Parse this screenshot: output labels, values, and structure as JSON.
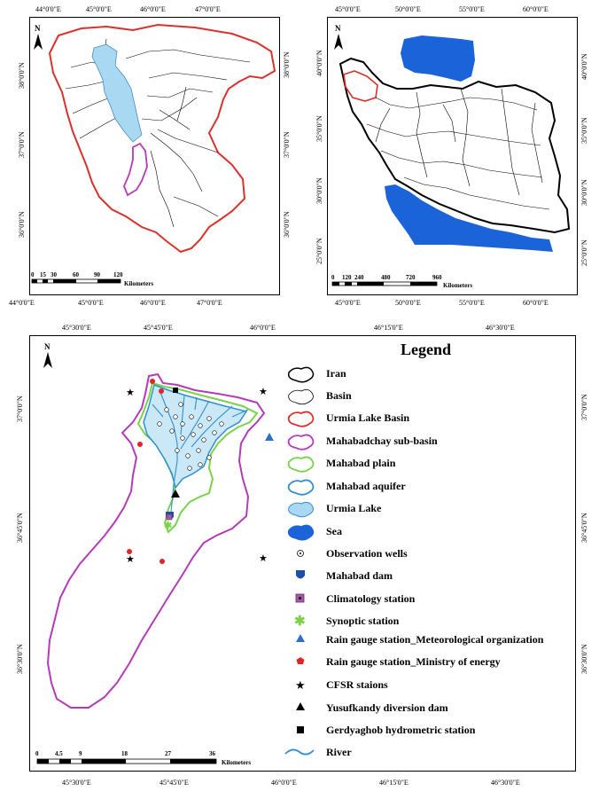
{
  "map1": {
    "top_labels": [
      "44°0'0\"E",
      "45°0'0\"E",
      "46°0'0\"E",
      "47°0'0\"E"
    ],
    "bottom_labels": [
      "44°0'0\"E",
      "45°0'0\"E",
      "46°0'0\"E",
      "47°0'0\"E"
    ],
    "left_labels": [
      "38°0'0\"N",
      "37°0'0\"N",
      "36°0'0\"N"
    ],
    "right_labels": [
      "38°0'0\"N",
      "37°0'0\"N",
      "36°0'0\"N"
    ],
    "scale_numbers": [
      "0",
      "15",
      "30",
      "60",
      "90",
      "120"
    ],
    "scale_unit": "Kilometers",
    "north": "N"
  },
  "map2": {
    "top_labels": [
      "45°0'0\"E",
      "50°0'0\"E",
      "55°0'0\"E",
      "60°0'0\"E"
    ],
    "bottom_labels": [
      "45°0'0\"E",
      "50°0'0\"E",
      "55°0'0\"E",
      "60°0'0\"E"
    ],
    "right_labels": [
      "40°0'0\"N",
      "35°0'0\"N",
      "30°0'0\"N",
      "25°0'0\"N"
    ],
    "left_labels": [
      "40°0'0\"N",
      "35°0'0\"N",
      "30°0'0\"N",
      "25°0'0\"N"
    ],
    "scale_numbers": [
      "0",
      "120",
      "240",
      "480",
      "720",
      "960"
    ],
    "scale_unit": "Kilometers",
    "north": "N"
  },
  "map3": {
    "top_labels": [
      "45°30'0\"E",
      "45°45'0\"E",
      "46°0'0\"E",
      "46°15'0\"E",
      "46°30'0\"E"
    ],
    "bottom_labels": [
      "45°30'0\"E",
      "45°45'0\"E",
      "46°0'0\"E",
      "46°15'0\"E",
      "46°30'0\"E"
    ],
    "left_labels": [
      "37°0'0\"N",
      "36°45'0\"N",
      "36°30'0\"N"
    ],
    "right_labels": [
      "37°0'0\"N",
      "36°45'0\"N",
      "36°30'0\"N"
    ],
    "scale_numbers": [
      "0",
      "4.5",
      "9",
      "18",
      "27",
      "36"
    ],
    "scale_unit": "Kilometers",
    "north": "N"
  },
  "legend": {
    "title": "Legend",
    "items": [
      {
        "key": "iran",
        "label": "Iran"
      },
      {
        "key": "basin",
        "label": "Basin"
      },
      {
        "key": "urmia-basin",
        "label": "Urmia Lake Basin"
      },
      {
        "key": "mahabadchay",
        "label": "Mahabadchay sub-basin"
      },
      {
        "key": "mahabad-plain",
        "label": "Mahabad plain"
      },
      {
        "key": "mahabad-aquifer",
        "label": "Mahabad aquifer"
      },
      {
        "key": "urmia-lake",
        "label": " Urmia Lake"
      },
      {
        "key": "sea",
        "label": "Sea"
      },
      {
        "key": "wells",
        "label": "Observation wells"
      },
      {
        "key": "dam",
        "label": "Mahabad dam"
      },
      {
        "key": "climatology",
        "label": "Climatology station"
      },
      {
        "key": "synoptic",
        "label": "Synoptic station"
      },
      {
        "key": "rain-met",
        "label": "Rain gauge station_Meteorological organization"
      },
      {
        "key": "rain-moe",
        "label": "Rain gauge station_Ministry of energy"
      },
      {
        "key": "cfsr",
        "label": "CFSR staions"
      },
      {
        "key": "yusufkandy",
        "label": "Yusufkandy diversion dam"
      },
      {
        "key": "gerdyaghob",
        "label": "Gerdyaghob hydrometric station"
      },
      {
        "key": "river",
        "label": "River"
      }
    ]
  },
  "colors": {
    "urmia_basin": "#d9322c",
    "subbasin": "#b43bb8",
    "plain": "#7bd24a",
    "aquifer": "#2f8fd0",
    "lake": "#a9d9f2",
    "sea": "#1b63d8",
    "met_gauge": "#2d6fc8",
    "moe_gauge": "#e02525"
  }
}
